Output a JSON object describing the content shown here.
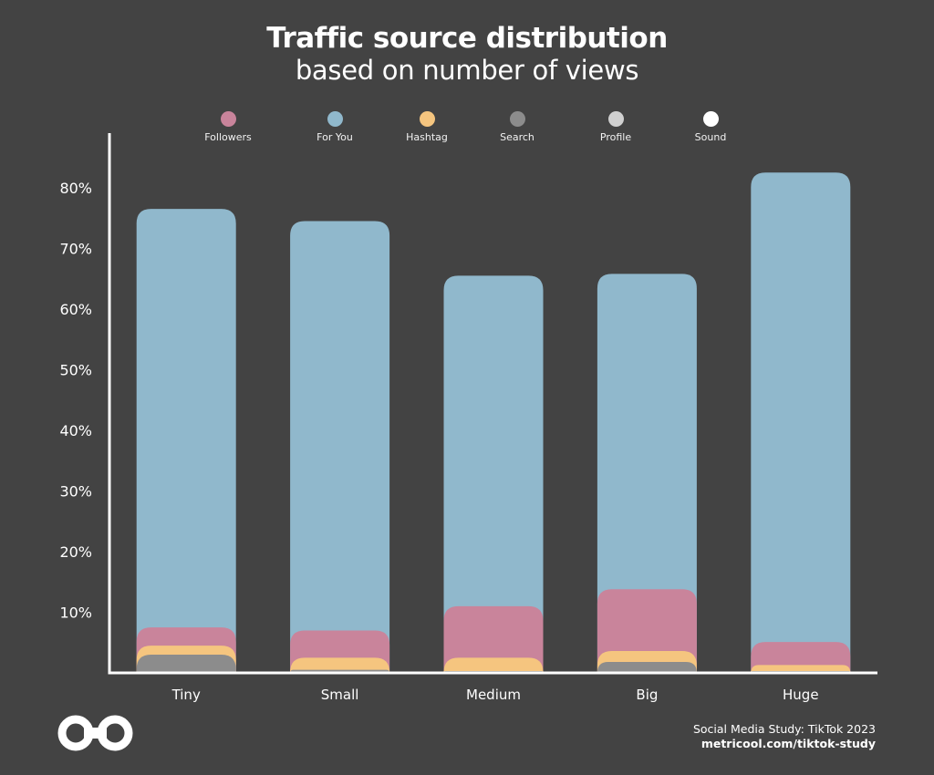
{
  "chart_data": {
    "type": "bar",
    "stacked": true,
    "title": "Traffic source distribution",
    "subtitle": "based on number of views",
    "categories": [
      "Tiny",
      "Small",
      "Medium",
      "Big",
      "Huge"
    ],
    "series": [
      {
        "name": "Followers",
        "color": "#c9849b",
        "values": [
          3.0,
          4.5,
          8.5,
          10.2,
          3.8
        ]
      },
      {
        "name": "For You",
        "color": "#90b8cc",
        "values": [
          69.0,
          67.5,
          54.5,
          52.0,
          77.4
        ]
      },
      {
        "name": "Hashtag",
        "color": "#f5c57f",
        "values": [
          1.5,
          2.0,
          2.2,
          1.8,
          1.0
        ]
      },
      {
        "name": "Search",
        "color": "#8c8c8c",
        "values": [
          3.0,
          0.5,
          0.3,
          1.8,
          0.3
        ]
      },
      {
        "name": "Profile",
        "color": "#d0d0d0",
        "values": [
          0,
          0,
          0,
          0,
          0
        ]
      },
      {
        "name": "Sound",
        "color": "#ffffff",
        "values": [
          0,
          0,
          0,
          0,
          0
        ]
      }
    ],
    "stack_order": [
      "Search",
      "Hashtag",
      "Followers",
      "For You",
      "Profile",
      "Sound"
    ],
    "ylim": [
      0,
      89
    ],
    "yticks": [
      10,
      20,
      30,
      40,
      50,
      60,
      70,
      80
    ],
    "ytick_labels": [
      "10%",
      "20%",
      "30%",
      "40%",
      "50%",
      "60%",
      "70%",
      "80%"
    ],
    "legend_position": "top",
    "grid": false
  },
  "footer": {
    "source": "Social Media Study: TikTok 2023",
    "url": "metricool.com/tiktok-study"
  },
  "logo": {
    "icon": "infinity-logo-icon",
    "color": "#ffffff"
  }
}
